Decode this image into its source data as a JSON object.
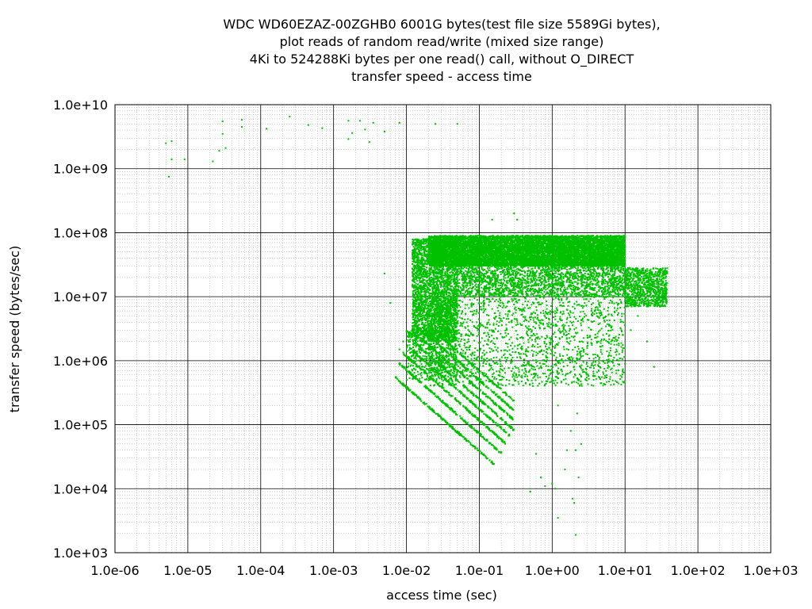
{
  "chart_data": {
    "type": "scatter",
    "title": [
      "WDC WD60EZAZ-00ZGHB0 6001G bytes(test file size 5589Gi bytes),",
      "plot reads of random read/write (mixed size range)",
      "4Ki to 524288Ki bytes per one read() call, without O_DIRECT",
      "transfer speed - access time"
    ],
    "xlabel": "access time (sec)",
    "ylabel": "transfer speed (bytes/sec)",
    "x_scale": "log",
    "y_scale": "log",
    "xlim": [
      1e-06,
      1000.0
    ],
    "ylim": [
      1000.0,
      10000000000.0
    ],
    "x_ticks": [
      "1.0e-06",
      "1.0e-05",
      "1.0e-04",
      "1.0e-03",
      "1.0e-02",
      "1.0e-01",
      "1.0e+00",
      "1.0e+01",
      "1.0e+02",
      "1.0e+03"
    ],
    "y_ticks": [
      "1.0e+03",
      "1.0e+04",
      "1.0e+05",
      "1.0e+06",
      "1.0e+07",
      "1.0e+08",
      "1.0e+09",
      "1.0e+10"
    ],
    "grid": true,
    "minor_grid": true,
    "point_color": "#00c000",
    "series": [
      {
        "points": [
          [
            5e-06,
            2500000000.0
          ],
          [
            6e-06,
            1400000000.0
          ],
          [
            5.5e-06,
            750000000.0
          ],
          [
            9e-06,
            1400000000.0
          ],
          [
            6e-06,
            2700000000.0
          ],
          [
            2.2e-05,
            1300000000.0
          ],
          [
            2.7e-05,
            1900000000.0
          ],
          [
            3e-05,
            3500000000.0
          ],
          [
            3e-05,
            5500000000.0
          ],
          [
            3.3e-05,
            2100000000.0
          ],
          [
            5.5e-05,
            4500000000.0
          ],
          [
            5.5e-05,
            5800000000.0
          ],
          [
            0.00012,
            4200000000.0
          ],
          [
            0.00025,
            6500000000.0
          ],
          [
            0.00045,
            4800000000.0
          ],
          [
            0.0007,
            4300000000.0
          ],
          [
            0.0016,
            2900000000.0
          ],
          [
            0.0016,
            5600000000.0
          ],
          [
            0.0018,
            3600000000.0
          ],
          [
            0.0023,
            5600000000.0
          ],
          [
            0.0027,
            4100000000.0
          ],
          [
            0.0031,
            2600000000.0
          ],
          [
            0.0035,
            5200000000.0
          ],
          [
            0.005,
            3800000000.0
          ],
          [
            0.008,
            5200000000.0
          ],
          [
            0.025,
            5000000000.0
          ],
          [
            0.05,
            5000000000.0
          ],
          [
            0.005,
            23000000.0
          ],
          [
            0.006,
            8000000.0
          ],
          [
            0.008,
            1500000.0
          ],
          [
            0.009,
            2000000.0
          ],
          [
            0.15,
            160000000.0
          ],
          [
            0.3,
            200000000.0
          ],
          [
            0.33,
            160000000.0
          ],
          [
            1.2,
            200000.0
          ],
          [
            2.2,
            150000.0
          ],
          [
            1.8,
            80000.0
          ],
          [
            2.5,
            50000.0
          ],
          [
            1.6,
            40000.0
          ],
          [
            2.1,
            40000.0
          ],
          [
            0.6,
            35000.0
          ],
          [
            0.7,
            15000.0
          ],
          [
            1.0,
            12000.0
          ],
          [
            1.1,
            10000.0
          ],
          [
            1.5,
            20000.0
          ],
          [
            1.9,
            7000.0
          ],
          [
            2,
            6000.0
          ],
          [
            2.3,
            15000.0
          ],
          [
            1.2,
            3500.0
          ],
          [
            2.1,
            1900.0
          ],
          [
            0.8,
            11000.0
          ],
          [
            0.5,
            9000.0
          ],
          [
            25,
            800000.0
          ],
          [
            20,
            2000000.0
          ],
          [
            15,
            5000000.0
          ],
          [
            30,
            10000000.0
          ],
          [
            12,
            3000000.0
          ]
        ]
      }
    ],
    "dense_regions": [
      {
        "x": [
          0.012,
          0.05
        ],
        "y": [
          2000000.0,
          80000000.0
        ],
        "count": 3000
      },
      {
        "x": [
          0.02,
          10
        ],
        "y": [
          30000000.0,
          90000000.0
        ],
        "count": 9000
      },
      {
        "x": [
          0.05,
          10
        ],
        "y": [
          10000000.0,
          40000000.0
        ],
        "count": 2500
      },
      {
        "x": [
          10,
          38
        ],
        "y": [
          7000000.0,
          28000000.0
        ],
        "count": 900
      },
      {
        "x": [
          0.02,
          10
        ],
        "y": [
          400000.0,
          10000000.0
        ],
        "count": 1800
      },
      {
        "x": [
          0.01,
          0.05
        ],
        "y": [
          500000.0,
          3000000.0
        ],
        "count": 500
      }
    ],
    "diagonal_bands": [
      {
        "x_start": 0.007,
        "x_end": 0.16,
        "y_start": 550000.0,
        "count": 220
      },
      {
        "x_start": 0.008,
        "x_end": 0.2,
        "y_start": 900000.0,
        "count": 220
      },
      {
        "x_start": 0.009,
        "x_end": 0.23,
        "y_start": 1300000.0,
        "count": 220
      },
      {
        "x_start": 0.011,
        "x_end": 0.26,
        "y_start": 1600000.0,
        "count": 200
      },
      {
        "x_start": 0.013,
        "x_end": 0.3,
        "y_start": 1900000.0,
        "count": 200
      },
      {
        "x_start": 0.016,
        "x_end": 0.3,
        "y_start": 2200000.0,
        "count": 180
      },
      {
        "x_start": 0.02,
        "x_end": 0.3,
        "y_start": 2500000.0,
        "count": 160
      },
      {
        "x_start": 0.025,
        "x_end": 0.3,
        "y_start": 2800000.0,
        "count": 140
      }
    ]
  }
}
